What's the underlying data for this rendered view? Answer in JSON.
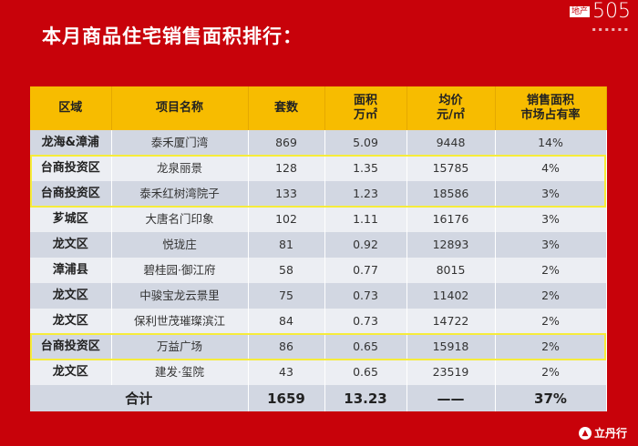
{
  "title": "本月商品住宅销售面积排行：",
  "logo_top": {
    "tag": "地产",
    "number": "505"
  },
  "logo_bottom": "立丹行",
  "colors": {
    "background": "#c8020a",
    "header": "#f7bc00",
    "highlight": "#f6ec3a"
  },
  "table": {
    "headers": [
      [
        "区域"
      ],
      [
        "项目名称"
      ],
      [
        "套数"
      ],
      [
        "面积",
        "万㎡"
      ],
      [
        "均价",
        "元/㎡"
      ],
      [
        "销售面积",
        "市场占有率"
      ]
    ],
    "rows": [
      {
        "region": "龙海&漳浦",
        "project": "泰禾厦门湾",
        "units": "869",
        "area": "5.09",
        "price": "9448",
        "share": "14%",
        "highlighted": false
      },
      {
        "region": "台商投资区",
        "project": "龙泉丽景",
        "units": "128",
        "area": "1.35",
        "price": "15785",
        "share": "4%",
        "highlighted": true
      },
      {
        "region": "台商投资区",
        "project": "泰禾红树湾院子",
        "units": "133",
        "area": "1.23",
        "price": "18586",
        "share": "3%",
        "highlighted": true
      },
      {
        "region": "芗城区",
        "project": "大唐名门印象",
        "units": "102",
        "area": "1.11",
        "price": "16176",
        "share": "3%",
        "highlighted": false
      },
      {
        "region": "龙文区",
        "project": "悦珑庄",
        "units": "81",
        "area": "0.92",
        "price": "12893",
        "share": "3%",
        "highlighted": false
      },
      {
        "region": "漳浦县",
        "project": "碧桂园·御江府",
        "units": "58",
        "area": "0.77",
        "price": "8015",
        "share": "2%",
        "highlighted": false
      },
      {
        "region": "龙文区",
        "project": "中骏宝龙云景里",
        "units": "75",
        "area": "0.73",
        "price": "11402",
        "share": "2%",
        "highlighted": false
      },
      {
        "region": "龙文区",
        "project": "保利世茂璀璨滨江",
        "units": "84",
        "area": "0.73",
        "price": "14722",
        "share": "2%",
        "highlighted": false
      },
      {
        "region": "台商投资区",
        "project": "万益广场",
        "units": "86",
        "area": "0.65",
        "price": "15918",
        "share": "2%",
        "highlighted": true
      },
      {
        "region": "龙文区",
        "project": "建发·玺院",
        "units": "43",
        "area": "0.65",
        "price": "23519",
        "share": "2%",
        "highlighted": false
      }
    ],
    "total": {
      "label": "合计",
      "units": "1659",
      "area": "13.23",
      "price": "——",
      "share": "37%"
    }
  }
}
